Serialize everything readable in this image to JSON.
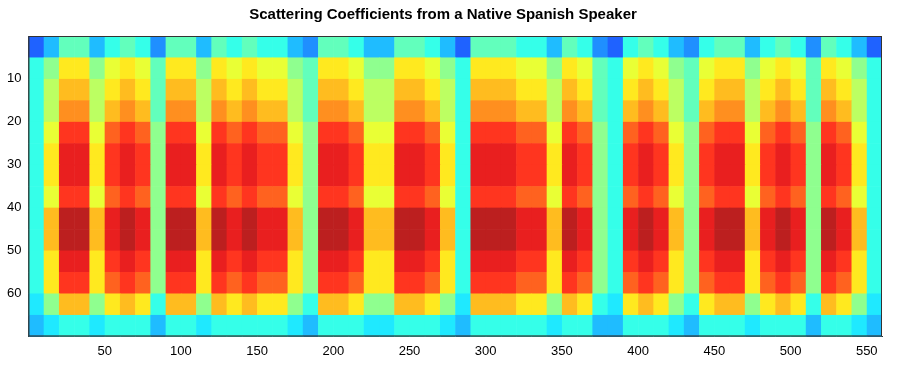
{
  "chart_data": {
    "type": "heatmap",
    "title": "Scattering Coefficients from a Native Spanish Speaker",
    "xlim": [
      0,
      560
    ],
    "ylim": [
      0,
      70
    ],
    "xticks": [
      50,
      100,
      150,
      200,
      250,
      300,
      350,
      400,
      450,
      500,
      550
    ],
    "yticks": [
      10,
      20,
      30,
      40,
      50,
      60
    ],
    "grid": false,
    "color_range": [
      0,
      1
    ],
    "x": [
      5,
      15,
      25,
      35,
      45,
      55,
      65,
      75,
      85,
      95,
      105,
      115,
      125,
      135,
      145,
      155,
      165,
      175,
      185,
      195,
      205,
      215,
      225,
      235,
      245,
      255,
      265,
      275,
      285,
      295,
      305,
      315,
      325,
      335,
      345,
      355,
      365,
      375,
      385,
      395,
      405,
      415,
      425,
      435,
      445,
      455,
      465,
      475,
      485,
      495,
      505,
      515,
      525,
      535,
      545,
      555
    ],
    "y": [
      2.5,
      7.5,
      12.5,
      17.5,
      22.5,
      27.5,
      32.5,
      37.5,
      42.5,
      47.5,
      52.5,
      57.5,
      62.5,
      67.5
    ],
    "cells": [
      [
        0.2,
        0.3,
        0.45,
        0.45,
        0.3,
        0.4,
        0.45,
        0.4,
        0.25,
        0.45,
        0.45,
        0.3,
        0.45,
        0.4,
        0.45,
        0.4,
        0.4,
        0.3,
        0.25,
        0.45,
        0.45,
        0.4,
        0.3,
        0.3,
        0.45,
        0.45,
        0.4,
        0.3,
        0.2,
        0.45,
        0.45,
        0.45,
        0.4,
        0.4,
        0.3,
        0.45,
        0.4,
        0.25,
        0.2,
        0.4,
        0.45,
        0.4,
        0.3,
        0.25,
        0.4,
        0.45,
        0.45,
        0.3,
        0.4,
        0.45,
        0.4,
        0.25,
        0.45,
        0.4,
        0.3,
        0.2
      ],
      [
        0.4,
        0.5,
        0.65,
        0.65,
        0.5,
        0.6,
        0.65,
        0.6,
        0.45,
        0.65,
        0.65,
        0.5,
        0.65,
        0.6,
        0.65,
        0.6,
        0.6,
        0.5,
        0.45,
        0.65,
        0.65,
        0.6,
        0.5,
        0.5,
        0.65,
        0.65,
        0.6,
        0.5,
        0.4,
        0.65,
        0.65,
        0.65,
        0.6,
        0.6,
        0.5,
        0.65,
        0.6,
        0.45,
        0.4,
        0.6,
        0.65,
        0.6,
        0.5,
        0.45,
        0.6,
        0.65,
        0.65,
        0.5,
        0.6,
        0.65,
        0.6,
        0.45,
        0.65,
        0.6,
        0.5,
        0.4
      ],
      [
        0.4,
        0.55,
        0.7,
        0.7,
        0.55,
        0.65,
        0.7,
        0.65,
        0.45,
        0.7,
        0.7,
        0.55,
        0.7,
        0.65,
        0.7,
        0.65,
        0.65,
        0.55,
        0.45,
        0.7,
        0.7,
        0.65,
        0.55,
        0.55,
        0.7,
        0.7,
        0.65,
        0.55,
        0.4,
        0.7,
        0.7,
        0.7,
        0.65,
        0.65,
        0.55,
        0.7,
        0.65,
        0.45,
        0.4,
        0.65,
        0.7,
        0.65,
        0.55,
        0.45,
        0.65,
        0.7,
        0.7,
        0.55,
        0.65,
        0.7,
        0.65,
        0.45,
        0.7,
        0.65,
        0.55,
        0.4
      ],
      [
        0.4,
        0.55,
        0.75,
        0.75,
        0.55,
        0.7,
        0.75,
        0.7,
        0.45,
        0.75,
        0.75,
        0.55,
        0.75,
        0.7,
        0.75,
        0.7,
        0.7,
        0.55,
        0.45,
        0.75,
        0.75,
        0.7,
        0.55,
        0.55,
        0.75,
        0.75,
        0.7,
        0.55,
        0.4,
        0.75,
        0.75,
        0.75,
        0.7,
        0.7,
        0.55,
        0.75,
        0.7,
        0.45,
        0.4,
        0.7,
        0.75,
        0.7,
        0.55,
        0.45,
        0.7,
        0.75,
        0.75,
        0.55,
        0.7,
        0.75,
        0.7,
        0.45,
        0.75,
        0.7,
        0.55,
        0.4
      ],
      [
        0.4,
        0.6,
        0.85,
        0.85,
        0.6,
        0.8,
        0.85,
        0.8,
        0.5,
        0.85,
        0.85,
        0.6,
        0.85,
        0.8,
        0.85,
        0.8,
        0.8,
        0.6,
        0.5,
        0.85,
        0.85,
        0.8,
        0.6,
        0.6,
        0.85,
        0.85,
        0.8,
        0.6,
        0.4,
        0.85,
        0.85,
        0.85,
        0.8,
        0.8,
        0.6,
        0.85,
        0.8,
        0.5,
        0.4,
        0.8,
        0.85,
        0.8,
        0.6,
        0.5,
        0.8,
        0.85,
        0.85,
        0.6,
        0.8,
        0.85,
        0.8,
        0.5,
        0.85,
        0.8,
        0.6,
        0.4
      ],
      [
        0.4,
        0.65,
        0.9,
        0.9,
        0.65,
        0.85,
        0.9,
        0.85,
        0.5,
        0.9,
        0.9,
        0.65,
        0.9,
        0.85,
        0.9,
        0.85,
        0.85,
        0.65,
        0.5,
        0.9,
        0.9,
        0.85,
        0.65,
        0.65,
        0.9,
        0.9,
        0.85,
        0.65,
        0.4,
        0.9,
        0.9,
        0.9,
        0.85,
        0.85,
        0.65,
        0.9,
        0.85,
        0.5,
        0.4,
        0.85,
        0.9,
        0.85,
        0.65,
        0.5,
        0.85,
        0.9,
        0.9,
        0.65,
        0.85,
        0.9,
        0.85,
        0.5,
        0.9,
        0.85,
        0.65,
        0.4
      ],
      [
        0.4,
        0.65,
        0.9,
        0.9,
        0.65,
        0.85,
        0.9,
        0.85,
        0.5,
        0.9,
        0.9,
        0.65,
        0.9,
        0.85,
        0.9,
        0.85,
        0.85,
        0.65,
        0.5,
        0.9,
        0.9,
        0.85,
        0.65,
        0.65,
        0.9,
        0.9,
        0.85,
        0.65,
        0.4,
        0.9,
        0.9,
        0.9,
        0.85,
        0.85,
        0.65,
        0.9,
        0.85,
        0.5,
        0.4,
        0.85,
        0.9,
        0.85,
        0.65,
        0.5,
        0.85,
        0.9,
        0.9,
        0.65,
        0.85,
        0.9,
        0.85,
        0.5,
        0.9,
        0.85,
        0.65,
        0.4
      ],
      [
        0.4,
        0.6,
        0.85,
        0.85,
        0.6,
        0.8,
        0.85,
        0.8,
        0.5,
        0.85,
        0.85,
        0.6,
        0.85,
        0.8,
        0.85,
        0.8,
        0.8,
        0.6,
        0.5,
        0.85,
        0.85,
        0.8,
        0.6,
        0.6,
        0.85,
        0.85,
        0.8,
        0.6,
        0.4,
        0.85,
        0.85,
        0.85,
        0.8,
        0.8,
        0.6,
        0.85,
        0.8,
        0.5,
        0.4,
        0.8,
        0.85,
        0.8,
        0.6,
        0.5,
        0.8,
        0.85,
        0.85,
        0.6,
        0.8,
        0.85,
        0.8,
        0.5,
        0.85,
        0.8,
        0.6,
        0.4
      ],
      [
        0.4,
        0.7,
        0.95,
        0.95,
        0.7,
        0.9,
        0.95,
        0.9,
        0.5,
        0.95,
        0.95,
        0.7,
        0.95,
        0.9,
        0.95,
        0.9,
        0.9,
        0.7,
        0.5,
        0.95,
        0.95,
        0.9,
        0.7,
        0.7,
        0.95,
        0.95,
        0.9,
        0.7,
        0.4,
        0.95,
        0.95,
        0.95,
        0.9,
        0.9,
        0.7,
        0.95,
        0.9,
        0.5,
        0.4,
        0.9,
        0.95,
        0.9,
        0.7,
        0.5,
        0.9,
        0.95,
        0.95,
        0.7,
        0.9,
        0.95,
        0.9,
        0.5,
        0.95,
        0.9,
        0.7,
        0.4
      ],
      [
        0.4,
        0.7,
        0.95,
        0.95,
        0.7,
        0.9,
        0.95,
        0.9,
        0.5,
        0.95,
        0.95,
        0.7,
        0.95,
        0.9,
        0.95,
        0.9,
        0.9,
        0.7,
        0.5,
        0.95,
        0.95,
        0.9,
        0.7,
        0.7,
        0.95,
        0.95,
        0.9,
        0.7,
        0.4,
        0.95,
        0.95,
        0.95,
        0.9,
        0.9,
        0.7,
        0.95,
        0.9,
        0.5,
        0.4,
        0.9,
        0.95,
        0.9,
        0.7,
        0.5,
        0.9,
        0.95,
        0.95,
        0.7,
        0.9,
        0.95,
        0.9,
        0.5,
        0.95,
        0.9,
        0.7,
        0.4
      ],
      [
        0.4,
        0.65,
        0.9,
        0.9,
        0.65,
        0.85,
        0.9,
        0.85,
        0.5,
        0.9,
        0.9,
        0.65,
        0.9,
        0.85,
        0.9,
        0.85,
        0.85,
        0.65,
        0.5,
        0.9,
        0.9,
        0.85,
        0.65,
        0.65,
        0.9,
        0.9,
        0.85,
        0.65,
        0.4,
        0.9,
        0.9,
        0.9,
        0.85,
        0.85,
        0.65,
        0.9,
        0.85,
        0.5,
        0.4,
        0.85,
        0.9,
        0.85,
        0.65,
        0.5,
        0.85,
        0.9,
        0.9,
        0.65,
        0.85,
        0.9,
        0.85,
        0.5,
        0.9,
        0.85,
        0.65,
        0.4
      ],
      [
        0.4,
        0.65,
        0.85,
        0.85,
        0.65,
        0.8,
        0.85,
        0.8,
        0.5,
        0.85,
        0.85,
        0.65,
        0.85,
        0.8,
        0.85,
        0.8,
        0.8,
        0.65,
        0.5,
        0.85,
        0.85,
        0.8,
        0.65,
        0.65,
        0.85,
        0.85,
        0.8,
        0.65,
        0.4,
        0.85,
        0.85,
        0.85,
        0.8,
        0.8,
        0.65,
        0.85,
        0.8,
        0.5,
        0.4,
        0.8,
        0.85,
        0.8,
        0.65,
        0.5,
        0.8,
        0.85,
        0.85,
        0.65,
        0.8,
        0.85,
        0.8,
        0.5,
        0.85,
        0.8,
        0.65,
        0.4
      ],
      [
        0.35,
        0.5,
        0.7,
        0.7,
        0.5,
        0.65,
        0.7,
        0.65,
        0.4,
        0.7,
        0.7,
        0.5,
        0.7,
        0.65,
        0.7,
        0.65,
        0.65,
        0.5,
        0.4,
        0.7,
        0.7,
        0.65,
        0.5,
        0.5,
        0.7,
        0.7,
        0.65,
        0.5,
        0.35,
        0.7,
        0.7,
        0.7,
        0.65,
        0.65,
        0.5,
        0.7,
        0.65,
        0.4,
        0.35,
        0.65,
        0.7,
        0.65,
        0.5,
        0.4,
        0.65,
        0.7,
        0.7,
        0.5,
        0.65,
        0.7,
        0.65,
        0.4,
        0.7,
        0.65,
        0.5,
        0.35
      ],
      [
        0.3,
        0.35,
        0.4,
        0.4,
        0.35,
        0.4,
        0.4,
        0.4,
        0.3,
        0.4,
        0.4,
        0.35,
        0.4,
        0.4,
        0.4,
        0.4,
        0.4,
        0.35,
        0.3,
        0.4,
        0.4,
        0.4,
        0.35,
        0.35,
        0.4,
        0.4,
        0.4,
        0.35,
        0.3,
        0.4,
        0.4,
        0.4,
        0.4,
        0.4,
        0.35,
        0.4,
        0.4,
        0.3,
        0.3,
        0.4,
        0.4,
        0.4,
        0.35,
        0.3,
        0.4,
        0.4,
        0.4,
        0.35,
        0.4,
        0.4,
        0.4,
        0.3,
        0.4,
        0.4,
        0.35,
        0.3
      ]
    ]
  }
}
